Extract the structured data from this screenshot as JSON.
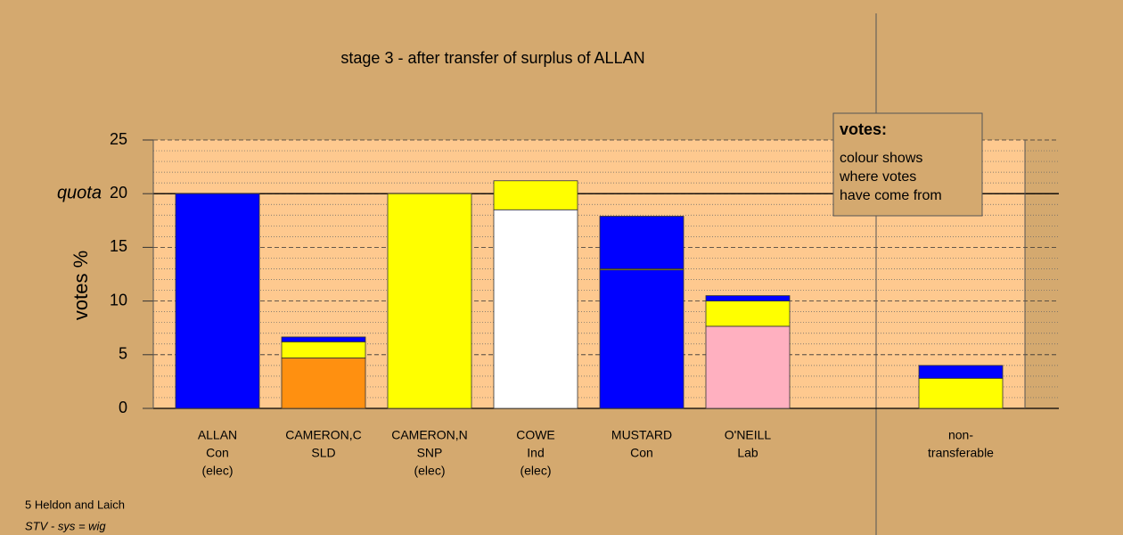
{
  "chart_data": {
    "type": "bar",
    "title": "stage 3 - after transfer of surplus of ALLAN",
    "y_label": "votes %",
    "categories": [
      [
        "ALLAN",
        "Con",
        "(elec)"
      ],
      [
        "CAMERON,C",
        "SLD"
      ],
      [
        "CAMERON,N",
        "SNP",
        "(elec)"
      ],
      [
        "COWE",
        "Ind",
        "(elec)"
      ],
      [
        "MUSTARD",
        "Con"
      ],
      [
        "O'NEILL",
        "Lab"
      ],
      [
        "non-",
        "transferable"
      ]
    ],
    "series": [
      {
        "colors": [
          "#0000ff",
          "#ff9010",
          "#ffff00",
          "#ffffff",
          "#0000ff",
          "#ffb0c0",
          null
        ],
        "values": [
          20,
          4.7,
          20,
          18.5,
          12.9,
          7.65,
          null
        ]
      },
      {
        "color": "#ffff00",
        "values": [
          null,
          1.5,
          null,
          2.7,
          0.1,
          2.35,
          2.8
        ]
      },
      {
        "color": "#0000ff",
        "values": [
          null,
          0.45,
          null,
          null,
          4.9,
          0.5,
          1.2
        ]
      }
    ],
    "ylim": [
      0,
      25
    ],
    "yticks": [
      0,
      5,
      10,
      15,
      20,
      25
    ],
    "grid": true,
    "quota": 20,
    "quota_label": "quota",
    "legend_box": {
      "title": "votes:",
      "lines": [
        "colour shows",
        "where votes",
        "have come from"
      ]
    },
    "footer": [
      "5 Heldon and Laich",
      "STV - sys = wig"
    ]
  }
}
